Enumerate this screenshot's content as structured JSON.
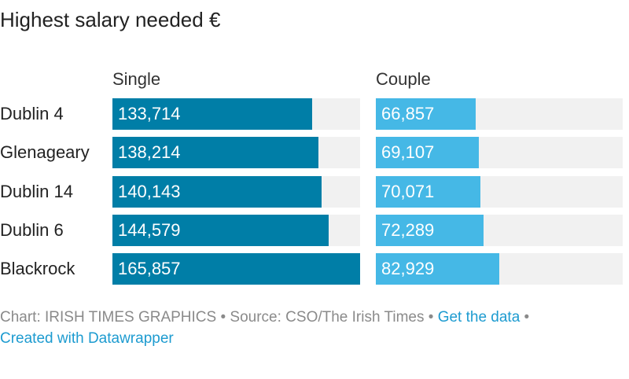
{
  "title": "Highest salary needed €",
  "footer": {
    "prefix": "Chart: IRISH TIMES GRAPHICS • Source: CSO/The Irish Times • ",
    "get_data": "Get the data",
    "sep": " • ",
    "created": "Created with Datawrapper"
  },
  "colors": {
    "single": "#007ea7",
    "couple": "#45b8e6",
    "track": "#f1f1f1"
  },
  "chart_data": {
    "type": "bar",
    "title": "Highest salary needed €",
    "categories": [
      "Dublin 4",
      "Glenageary",
      "Dublin 14",
      "Dublin 6",
      "Blackrock"
    ],
    "series": [
      {
        "name": "Single",
        "values": [
          133714,
          138214,
          140143,
          144579,
          165857
        ],
        "labels": [
          "133,714",
          "138,214",
          "140,143",
          "144,579",
          "165,857"
        ]
      },
      {
        "name": "Couple",
        "values": [
          66857,
          69107,
          70071,
          72289,
          82929
        ],
        "labels": [
          "66,857",
          "69,107",
          "70,071",
          "72,289",
          "82,929"
        ]
      }
    ],
    "xlim": [
      0,
      165857
    ],
    "grid": false,
    "legend": "column headers"
  }
}
